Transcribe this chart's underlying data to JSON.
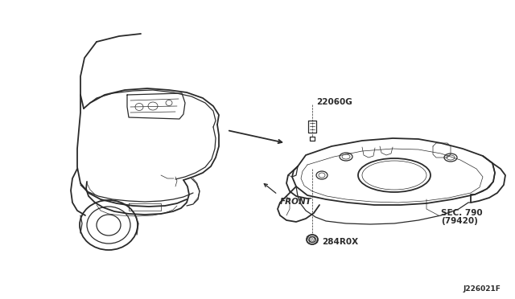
{
  "bg_color": "#ffffff",
  "line_color": "#2a2a2a",
  "label_22060G": "22060G",
  "label_284R0X": "284R0X",
  "label_SEC790": "SEC. 790",
  "label_79420": "(79420)",
  "label_FRONT": "FRONT",
  "label_J226021F": "J226021F",
  "lw": 0.9,
  "lw_thick": 1.3,
  "lw_thin": 0.5
}
